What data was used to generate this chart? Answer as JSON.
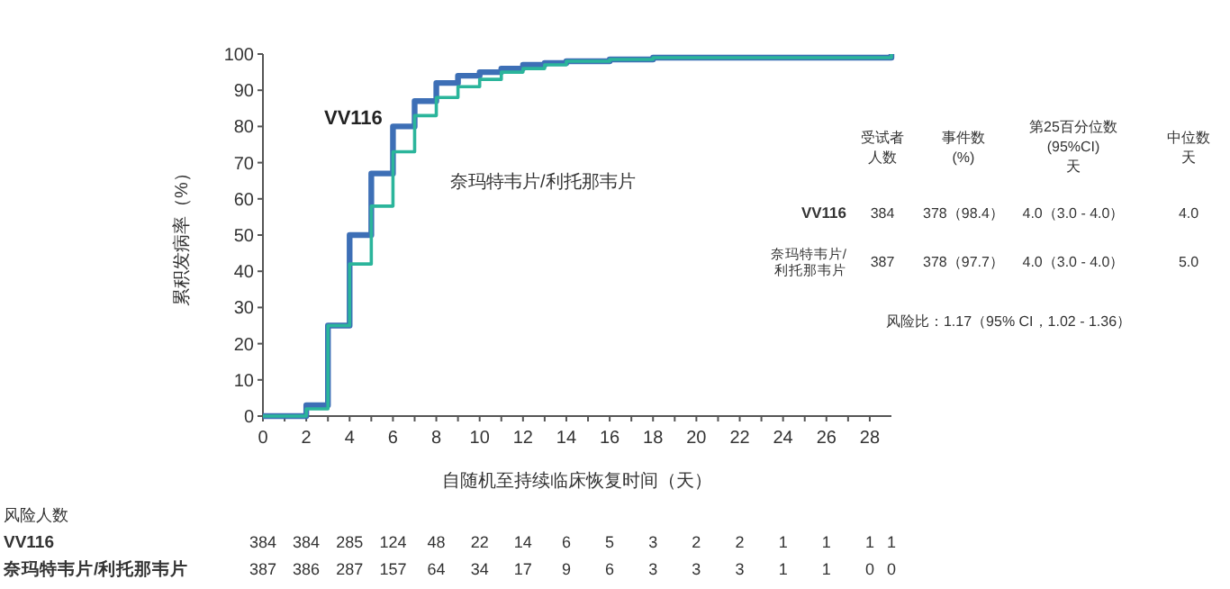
{
  "chart_data": {
    "type": "step",
    "xlabel": "自随机至持续临床恢复时间（天）",
    "ylabel": "累积发病率（%）",
    "xlim": [
      0,
      29
    ],
    "ylim": [
      0,
      100
    ],
    "xticks": [
      0,
      {
        "value": 1,
        "label": null
      },
      2,
      {
        "value": 3,
        "label": null
      },
      4,
      {
        "value": 5,
        "label": null
      },
      6,
      {
        "value": 7,
        "label": null
      },
      8,
      {
        "value": 9,
        "label": null
      },
      10,
      {
        "value": 11,
        "label": null
      },
      12,
      {
        "value": 13,
        "label": null
      },
      14,
      {
        "value": 15,
        "label": null
      },
      16,
      {
        "value": 17,
        "label": null
      },
      18,
      {
        "value": 19,
        "label": null
      },
      20,
      {
        "value": 21,
        "label": null
      },
      22,
      {
        "value": 23,
        "label": null
      },
      24,
      {
        "value": 25,
        "label": null
      },
      26,
      {
        "value": 27,
        "label": null
      },
      28
    ],
    "yticks": [
      0,
      10,
      20,
      30,
      40,
      50,
      60,
      70,
      80,
      90,
      100
    ],
    "grid": false,
    "legend": false,
    "marker": "none",
    "line_style": "solid",
    "series": [
      {
        "name": "VV116",
        "color": "#3d6fb6",
        "x": [
          0,
          2,
          3,
          4,
          5,
          6,
          7,
          8,
          9,
          10,
          11,
          12,
          13,
          14,
          16,
          18,
          29
        ],
        "values": [
          0,
          3,
          25,
          50,
          67,
          80,
          87,
          92,
          94,
          95,
          96,
          97,
          97.5,
          98,
          98.5,
          99,
          100
        ]
      },
      {
        "name": "奈玛特韦片/利托那韦片",
        "color": "#2bb59b",
        "x": [
          0,
          2,
          3,
          4,
          5,
          6,
          7,
          8,
          9,
          10,
          11,
          12,
          13,
          14,
          16,
          18,
          29
        ],
        "values": [
          0,
          2,
          25,
          42,
          58,
          73,
          83,
          88,
          91,
          93,
          95,
          96,
          97,
          98,
          98.5,
          99,
          100
        ]
      }
    ],
    "annotations": [
      "受试者",
      "人数",
      "事件数",
      "(%)",
      "第25百分位数",
      "(95%CI)",
      "天",
      "中位数",
      "天",
      "VV116",
      "384",
      "378（98.4）",
      "4.0（3.0 - 4.0）",
      "4.0",
      "奈玛特韦片/\n利托那韦片",
      "387",
      "378（97.7）",
      "4.0（3.0 - 4.0）",
      "5.0",
      "风险比：1.17（95% CI，1.02 - 1.36）",
      "风险人数",
      "VV116",
      "384",
      "384",
      "285",
      "124",
      "48",
      "22",
      "14",
      "6",
      "5",
      "3",
      "2",
      "2",
      "1",
      "1",
      "1",
      "1",
      "奈玛特韦片/利托那韦片",
      "387",
      "386",
      "287",
      "157",
      "64",
      "34",
      "17",
      "9",
      "6",
      "3",
      "3",
      "3",
      "1",
      "1",
      "0",
      "0"
    ]
  }
}
